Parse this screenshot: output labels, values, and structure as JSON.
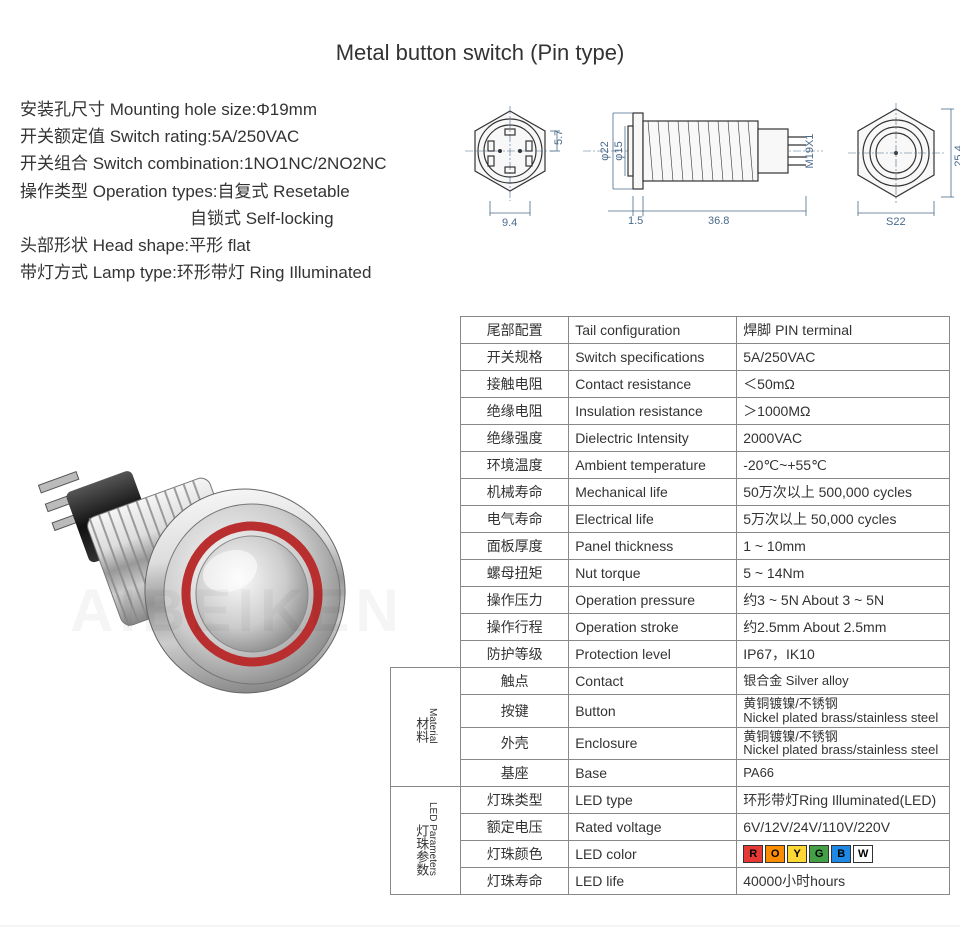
{
  "title": "Metal button switch  (Pin type)",
  "specs": {
    "line1": "安装孔尺寸 Mounting hole size:Φ19mm",
    "line2": "开关额定值 Switch rating:5A/250VAC",
    "line3": "开关组合 Switch combination:1NO1NC/2NO2NC",
    "line4": "操作类型 Operation types:自复式 Resetable",
    "line5": "自锁式 Self-locking",
    "line6": "头部形状 Head shape:平形 flat",
    "line7": "带灯方式 Lamp type:环形带灯 Ring Illuminated"
  },
  "diagrams": {
    "top": {
      "dim1": "5.7",
      "dim2": "9.4"
    },
    "side": {
      "dim1": "φ22",
      "dim2": "φ15",
      "dim3": "1.5",
      "dim4": "36.8",
      "thread": "M19X1"
    },
    "front": {
      "dim1": "25.4",
      "dim2": "S22"
    },
    "colors": {
      "line": "#4a6a8a",
      "part": "#333333"
    }
  },
  "table": {
    "rows": [
      {
        "cn": "尾部配置",
        "en": "Tail configuration",
        "val": "焊脚 PIN terminal"
      },
      {
        "cn": "开关规格",
        "en": "Switch specifications",
        "val": "5A/250VAC"
      },
      {
        "cn": "接触电阻",
        "en": "Contact resistance",
        "val": "＜50mΩ"
      },
      {
        "cn": "绝缘电阻",
        "en": "Insulation resistance",
        "val": "＞1000MΩ"
      },
      {
        "cn": "绝缘强度",
        "en": "Dielectric Intensity",
        "val": "2000VAC"
      },
      {
        "cn": "环境温度",
        "en": "Ambient temperature",
        "val": "-20℃~+55℃"
      },
      {
        "cn": "机械寿命",
        "en": "Mechanical life",
        "val": "50万次以上 500,000 cycles"
      },
      {
        "cn": "电气寿命",
        "en": "Electrical life",
        "val": "5万次以上 50,000  cycles"
      },
      {
        "cn": "面板厚度",
        "en": "Panel thickness",
        "val": "1 ~ 10mm"
      },
      {
        "cn": "螺母扭矩",
        "en": "Nut torque",
        "val": "5 ~ 14Nm"
      },
      {
        "cn": "操作压力",
        "en": "Operation pressure",
        "val": "约3 ~ 5N About 3 ~ 5N"
      },
      {
        "cn": "操作行程",
        "en": "Operation stroke",
        "val": "约2.5mm About 2.5mm"
      },
      {
        "cn": "防护等级",
        "en": "Protection level",
        "val": "IP67，IK10"
      }
    ],
    "material_label_cn": "材料",
    "material_label_en": "Material",
    "material_rows": [
      {
        "cn": "触点",
        "en": "Contact",
        "val": "银合金 Silver alloy"
      },
      {
        "cn": "按键",
        "en": "Button",
        "val": "黄铜镀镍/不锈钢\nNickel plated brass/stainless steel"
      },
      {
        "cn": "外壳",
        "en": "Enclosure",
        "val": "黄铜镀镍/不锈钢\nNickel plated brass/stainless steel"
      },
      {
        "cn": "基座",
        "en": "Base",
        "val": "PA66"
      }
    ],
    "led_label_cn": "灯珠参数",
    "led_label_en": "LED Parameters",
    "led_rows": [
      {
        "cn": "灯珠类型",
        "en": "LED type",
        "val": "环形带灯Ring Illuminated(LED)"
      },
      {
        "cn": "额定电压",
        "en": "Rated voltage",
        "val": "6V/12V/24V/110V/220V"
      },
      {
        "cn": "灯珠颜色",
        "en": "LED color",
        "val": ""
      },
      {
        "cn": "灯珠寿命",
        "en": "LED life",
        "val": "40000小时hours"
      }
    ],
    "led_colors": [
      {
        "letter": "R",
        "bg": "#e53935"
      },
      {
        "letter": "O",
        "bg": "#fb8c00"
      },
      {
        "letter": "Y",
        "bg": "#fdd835"
      },
      {
        "letter": "G",
        "bg": "#43a047"
      },
      {
        "letter": "B",
        "bg": "#1e88e5"
      },
      {
        "letter": "W",
        "bg": "#ffffff"
      }
    ]
  },
  "watermark": "AIBEIKEN"
}
